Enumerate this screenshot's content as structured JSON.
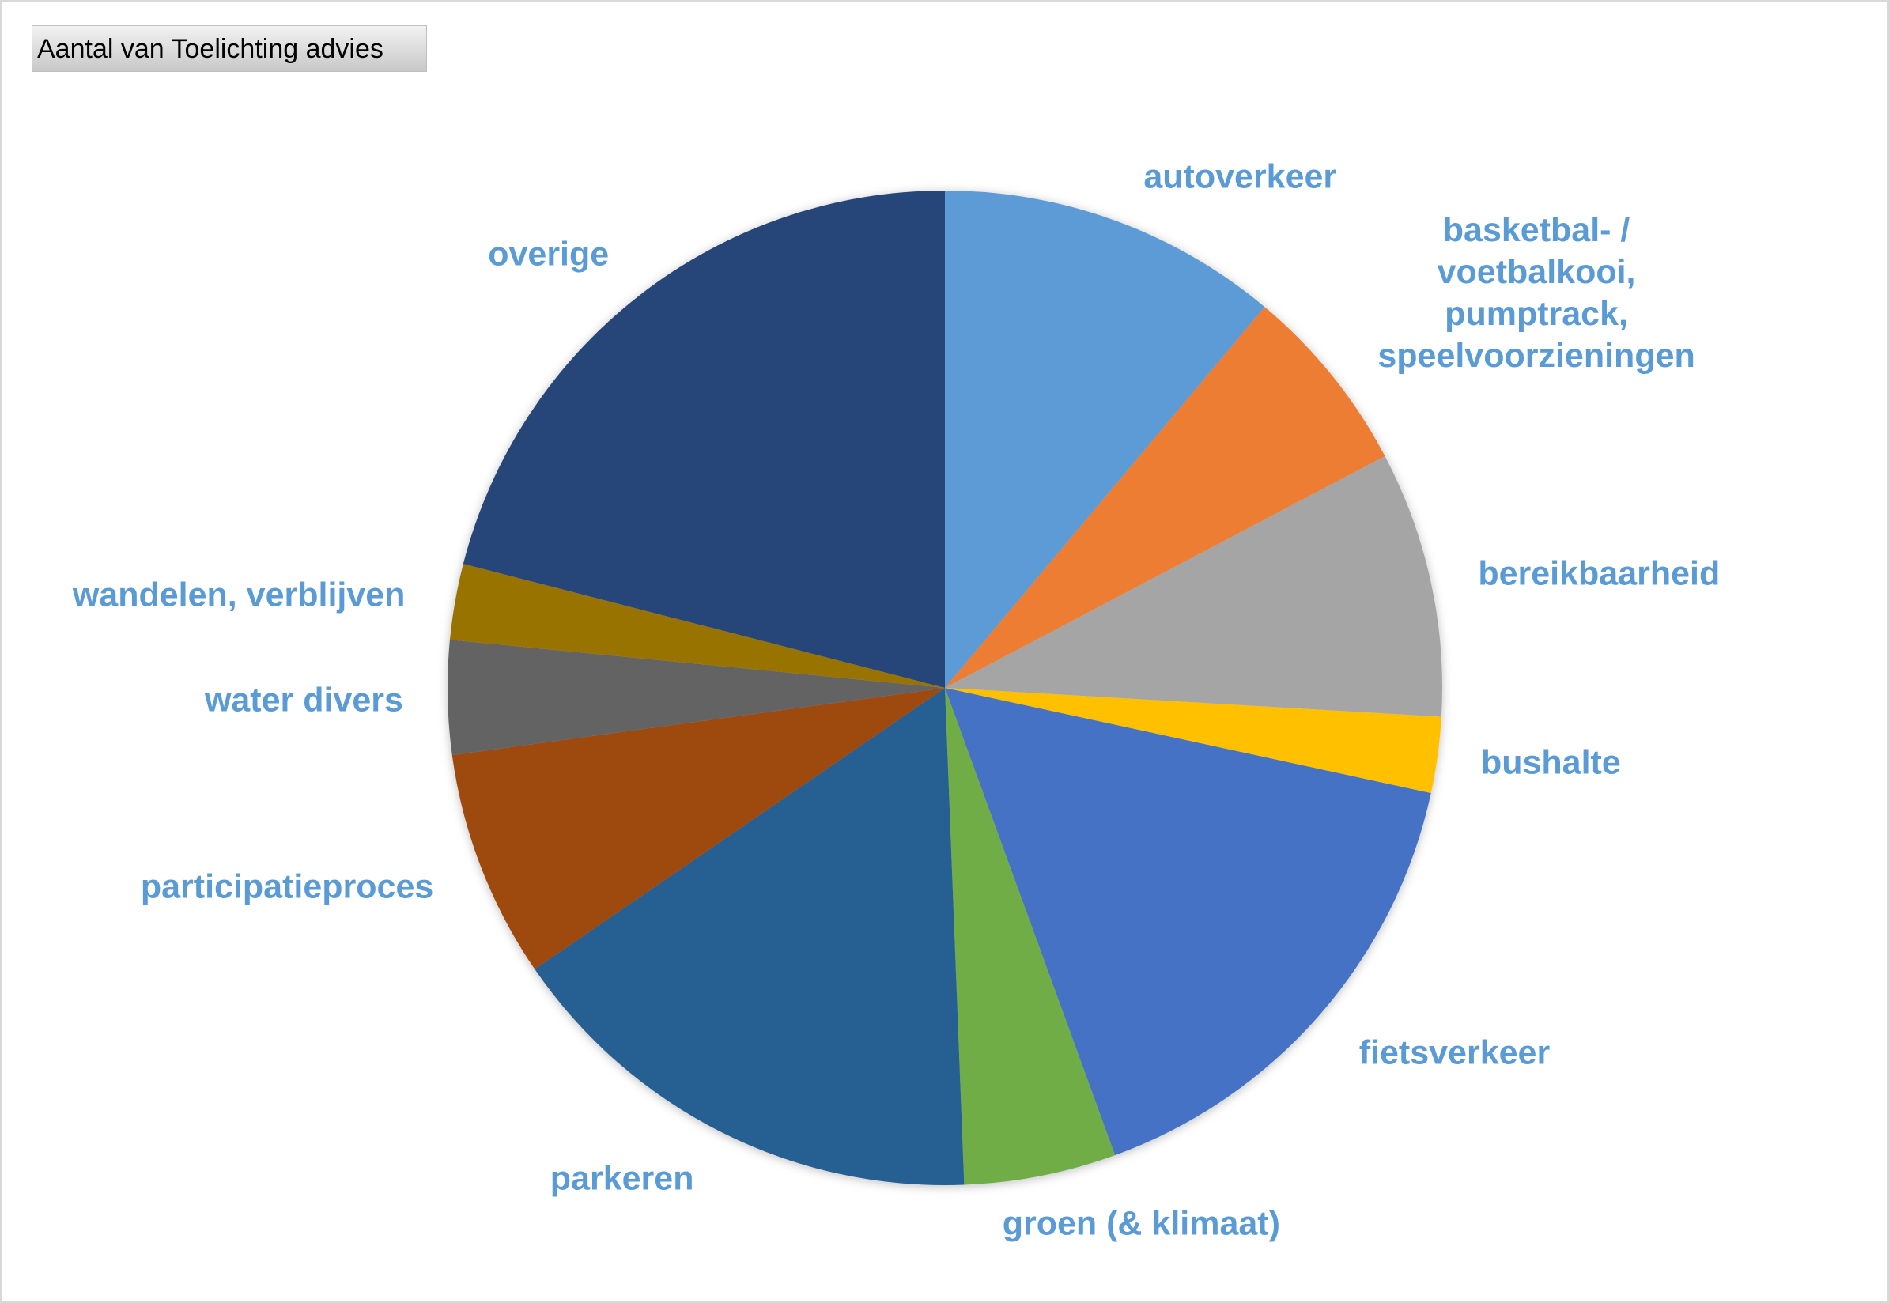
{
  "chart_data": {
    "type": "pie",
    "title": "Aantal van Toelichting advies",
    "categories": [
      "autoverkeer",
      "basketbal- / voetbalkooi, pumptrack, speelvoorzieningen",
      "bereikbaarheid",
      "bushalte",
      "fietsverkeer",
      "groen (& klimaat)",
      "parkeren",
      "participatieproces",
      "water divers",
      "wandelen, verblijven",
      "overige"
    ],
    "values": [
      9,
      5,
      7,
      2,
      13,
      4,
      13,
      6,
      3,
      2,
      17
    ],
    "colors": [
      "#5b9bd5",
      "#ed7d31",
      "#a5a5a5",
      "#ffc000",
      "#4472c4",
      "#70ad47",
      "#255e91",
      "#9e480e",
      "#636363",
      "#997300",
      "#264478"
    ]
  }
}
